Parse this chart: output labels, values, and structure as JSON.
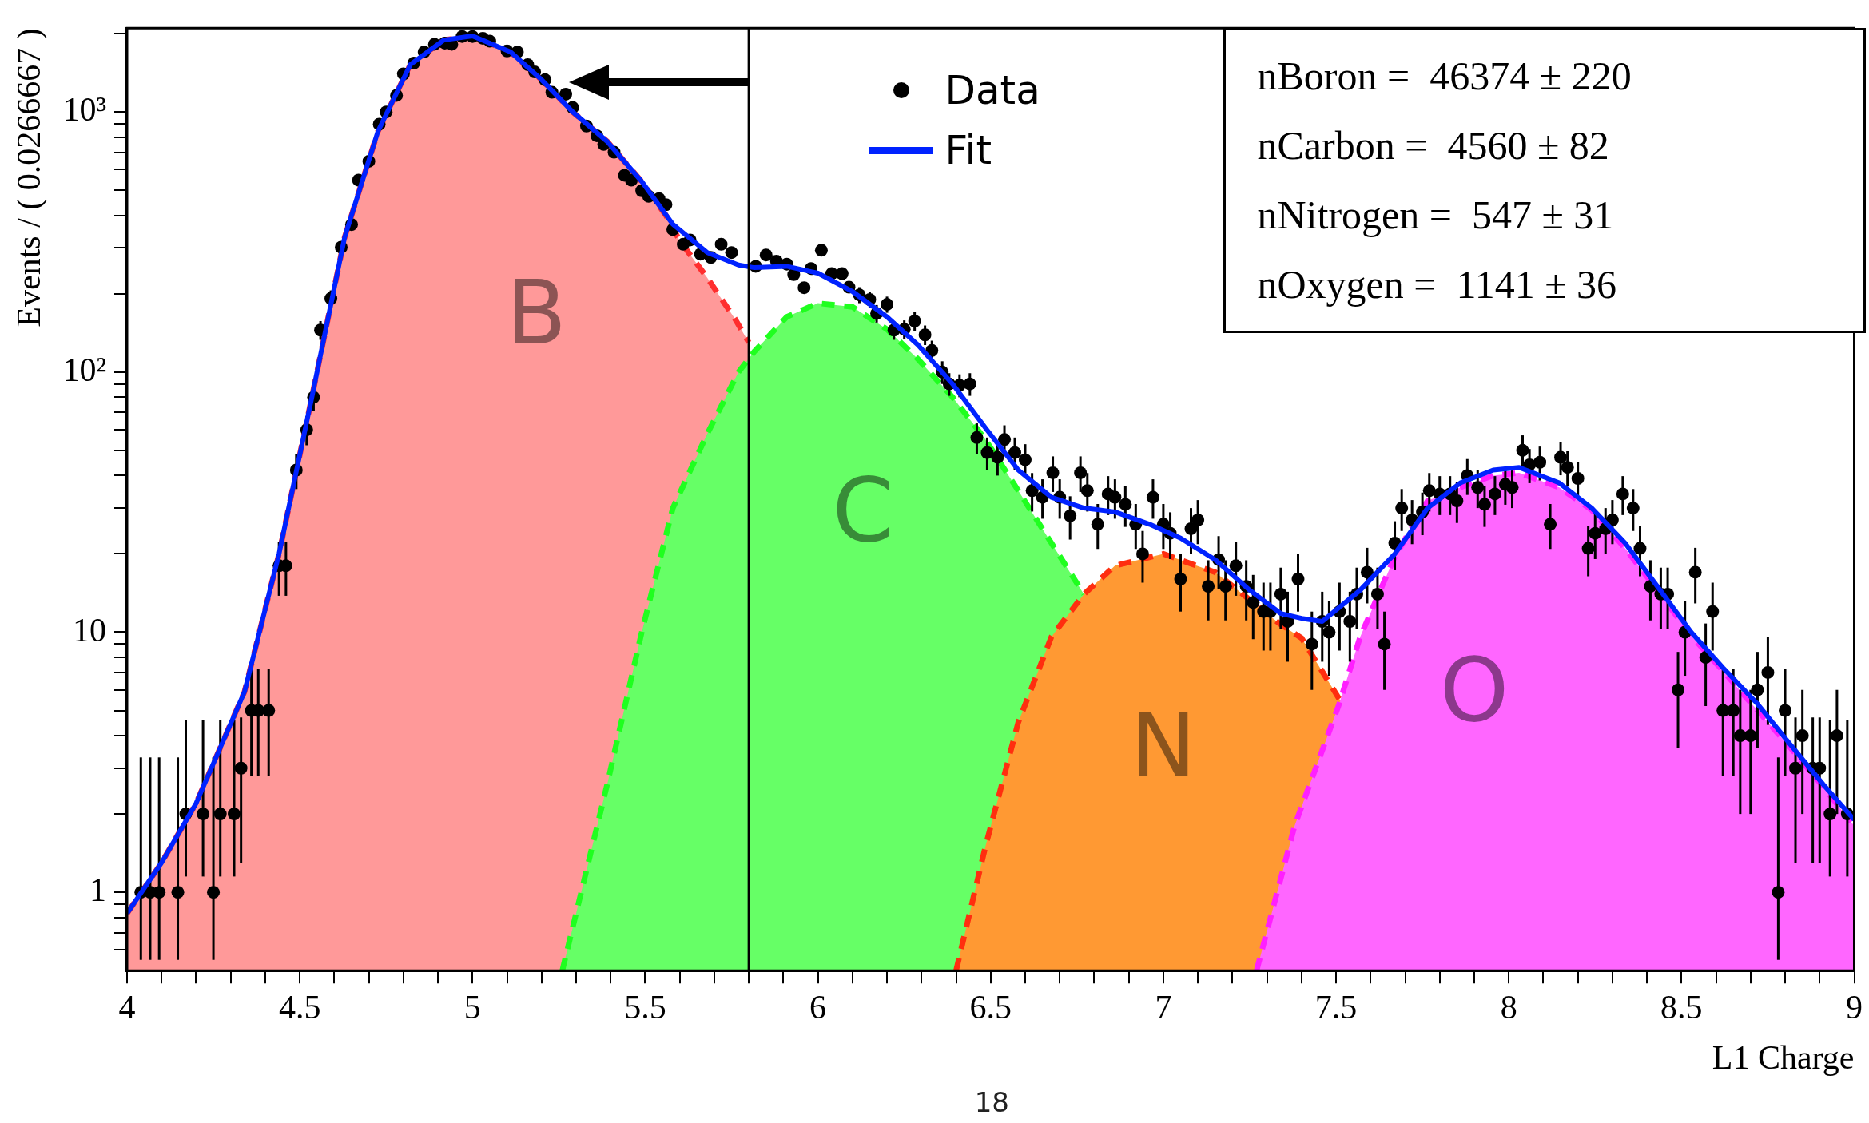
{
  "chart_data": {
    "type": "scatter",
    "xlabel": "L1 Charge",
    "ylabel": "Events / ( 0.0266667 )",
    "log": true,
    "legend": "top",
    "xlim": [
      4,
      9
    ],
    "ylim": [
      0.5,
      2100
    ],
    "xticks": [
      4,
      {
        "value": 4.1,
        "label": null
      },
      {
        "value": 4.2,
        "label": null
      },
      {
        "value": 4.3,
        "label": null
      },
      {
        "value": 4.4,
        "label": null
      },
      4.5,
      {
        "value": 4.6,
        "label": null
      },
      {
        "value": 4.7,
        "label": null
      },
      {
        "value": 4.8,
        "label": null
      },
      {
        "value": 4.9,
        "label": null
      },
      5,
      {
        "value": 5.1,
        "label": null
      },
      {
        "value": 5.2,
        "label": null
      },
      {
        "value": 5.3,
        "label": null
      },
      {
        "value": 5.4,
        "label": null
      },
      5.5,
      {
        "value": 5.6,
        "label": null
      },
      {
        "value": 5.7,
        "label": null
      },
      {
        "value": 5.8,
        "label": null
      },
      {
        "value": 5.9,
        "label": null
      },
      6,
      {
        "value": 6.1,
        "label": null
      },
      {
        "value": 6.2,
        "label": null
      },
      {
        "value": 6.3,
        "label": null
      },
      {
        "value": 6.4,
        "label": null
      },
      6.5,
      {
        "value": 6.6,
        "label": null
      },
      {
        "value": 6.7,
        "label": null
      },
      {
        "value": 6.8,
        "label": null
      },
      {
        "value": 6.9,
        "label": null
      },
      7,
      {
        "value": 7.1,
        "label": null
      },
      {
        "value": 7.2,
        "label": null
      },
      {
        "value": 7.3,
        "label": null
      },
      {
        "value": 7.4,
        "label": null
      },
      7.5,
      {
        "value": 7.6,
        "label": null
      },
      {
        "value": 7.7,
        "label": null
      },
      {
        "value": 7.8,
        "label": null
      },
      {
        "value": 7.9,
        "label": null
      },
      8,
      {
        "value": 8.1,
        "label": null
      },
      {
        "value": 8.2,
        "label": null
      },
      {
        "value": 8.3,
        "label": null
      },
      {
        "value": 8.4,
        "label": null
      },
      8.5,
      {
        "value": 8.6,
        "label": null
      },
      {
        "value": 8.7,
        "label": null
      },
      {
        "value": 8.8,
        "label": null
      },
      {
        "value": 8.9,
        "label": null
      },
      9
    ],
    "yticks": [
      {
        "value": 0.6,
        "label": null
      },
      {
        "value": 0.7,
        "label": null
      },
      {
        "value": 0.8,
        "label": null
      },
      {
        "value": 0.9,
        "label": null
      },
      1,
      {
        "value": 2,
        "label": null
      },
      {
        "value": 3,
        "label": null
      },
      {
        "value": 4,
        "label": null
      },
      {
        "value": 5,
        "label": null
      },
      {
        "value": 6,
        "label": null
      },
      {
        "value": 7,
        "label": null
      },
      {
        "value": 8,
        "label": null
      },
      {
        "value": 9,
        "label": null
      },
      10,
      {
        "value": 20,
        "label": null
      },
      {
        "value": 30,
        "label": null
      },
      {
        "value": 40,
        "label": null
      },
      {
        "value": 50,
        "label": null
      },
      {
        "value": 60,
        "label": null
      },
      {
        "value": 70,
        "label": null
      },
      {
        "value": 80,
        "label": null
      },
      {
        "value": 90,
        "label": null
      },
      {
        "value": 100,
        "label": "10²"
      },
      {
        "value": 200,
        "label": null
      },
      {
        "value": 300,
        "label": null
      },
      {
        "value": 400,
        "label": null
      },
      {
        "value": 500,
        "label": null
      },
      {
        "value": 600,
        "label": null
      },
      {
        "value": 700,
        "label": null
      },
      {
        "value": 800,
        "label": null
      },
      {
        "value": 900,
        "label": null
      },
      {
        "value": 1000,
        "label": "10³"
      },
      {
        "value": 2000,
        "label": null
      }
    ],
    "ref_lines": [
      {
        "axis": "x",
        "value": 5.8,
        "color": "#000000"
      }
    ],
    "annotations": [
      "B",
      "C",
      "N",
      "O",
      "nBoron =  46374 ± 220",
      "nCarbon =  4560 ± 82",
      "nNitrogen =  547 ± 31",
      "nOxygen =  1141 ± 36",
      "18"
    ],
    "series": [
      {
        "name": "Data",
        "color": "#000000",
        "marker": "circle",
        "x": [
          4.04,
          4.067,
          4.093,
          4.147,
          4.17,
          4.22,
          4.25,
          4.27,
          4.31,
          4.33,
          4.36,
          4.38,
          4.41,
          4.44,
          4.46,
          4.49,
          4.52,
          4.54,
          4.56,
          4.59,
          4.62,
          4.65,
          4.67,
          4.7,
          4.73,
          4.75,
          4.78,
          4.8,
          4.83,
          4.86,
          4.89,
          4.92,
          4.94,
          4.97,
          5.0,
          5.03,
          5.05,
          5.1,
          5.13,
          5.16,
          5.18,
          5.21,
          5.23,
          5.27,
          5.29,
          5.33,
          5.36,
          5.38,
          5.41,
          5.44,
          5.46,
          5.49,
          5.51,
          5.54,
          5.56,
          5.58,
          5.61,
          5.63,
          5.66,
          5.69,
          5.72,
          5.75,
          5.82,
          5.85,
          5.88,
          5.91,
          5.93,
          5.96,
          5.98,
          6.01,
          6.04,
          6.07,
          6.09,
          6.12,
          6.15,
          6.17,
          6.2,
          6.22,
          6.25,
          6.28,
          6.31,
          6.33,
          6.36,
          6.38,
          6.41,
          6.44,
          6.46,
          6.49,
          6.52,
          6.54,
          6.57,
          6.6,
          6.62,
          6.65,
          6.68,
          6.7,
          6.73,
          6.76,
          6.78,
          6.81,
          6.84,
          6.86,
          6.89,
          6.92,
          6.94,
          6.97,
          7.0,
          7.02,
          7.05,
          7.08,
          7.1,
          7.13,
          7.16,
          7.18,
          7.21,
          7.24,
          7.26,
          7.29,
          7.31,
          7.34,
          7.36,
          7.39,
          7.43,
          7.46,
          7.48,
          7.51,
          7.54,
          7.56,
          7.59,
          7.62,
          7.64,
          7.67,
          7.69,
          7.72,
          7.75,
          7.77,
          7.8,
          7.83,
          7.85,
          7.88,
          7.91,
          7.93,
          7.96,
          7.99,
          8.01,
          8.04,
          8.06,
          8.09,
          8.12,
          8.15,
          8.17,
          8.2,
          8.23,
          8.25,
          8.28,
          8.3,
          8.33,
          8.36,
          8.38,
          8.41,
          8.44,
          8.46,
          8.49,
          8.51,
          8.54,
          8.57,
          8.59,
          8.62,
          8.65,
          8.67,
          8.7,
          8.72,
          8.75,
          8.78,
          8.8,
          8.83,
          8.85,
          8.88,
          8.9,
          8.93,
          8.95,
          8.98
        ],
        "values": [
          1,
          1,
          1,
          1,
          2,
          2,
          1,
          2,
          2,
          3,
          5,
          5,
          5,
          18,
          18,
          42,
          60,
          80,
          145,
          192,
          302,
          369,
          547,
          646,
          897,
          1000,
          1158,
          1400,
          1540,
          1700,
          1820,
          1840,
          1820,
          1950,
          1950,
          1920,
          1870,
          1715,
          1700,
          1520,
          1425,
          1330,
          1190,
          1170,
          1040,
          883,
          810,
          750,
          700,
          571,
          547,
          498,
          474,
          464,
          440,
          353,
          310,
          322,
          284,
          276,
          310,
          288,
          255,
          282,
          267,
          260,
          237,
          211,
          250,
          294,
          239,
          239,
          212,
          198,
          190,
          168,
          182,
          145,
          146,
          157,
          139,
          121,
          100,
          90,
          89,
          90,
          56,
          49,
          47,
          55,
          49,
          46,
          35,
          33,
          41,
          33,
          28,
          41,
          35,
          26,
          34,
          33,
          31,
          26,
          20,
          33,
          26,
          24,
          16,
          25,
          27,
          15,
          19,
          15,
          18,
          15,
          13,
          12,
          12,
          14,
          11,
          16,
          9,
          11,
          10,
          12,
          11,
          14,
          17,
          14,
          9,
          22,
          30,
          27,
          29,
          35,
          34,
          34,
          32,
          40,
          36,
          31,
          34,
          37,
          36,
          50,
          44,
          45,
          26,
          47,
          43,
          39,
          21,
          24,
          25,
          27,
          34,
          30,
          21,
          15,
          14,
          14,
          6,
          10,
          17,
          8,
          12,
          5,
          5,
          4,
          4,
          6,
          7,
          1,
          5,
          3,
          4,
          3,
          3,
          2,
          4,
          2
        ],
        "errors": [
          [
            0.55,
            3.3
          ],
          [
            0.55,
            3.3
          ],
          [
            0.55,
            3.3
          ],
          [
            0.55,
            3.3
          ],
          [
            1.15,
            4.6
          ],
          [
            1.15,
            4.6
          ],
          [
            0.55,
            3.3
          ],
          [
            1.15,
            4.6
          ],
          [
            1.15,
            4.6
          ],
          1.7,
          2.2,
          2.2,
          2.2,
          4.2,
          4.2,
          6.5,
          7.7,
          9,
          12,
          14,
          null,
          null,
          null,
          null,
          null,
          null,
          null,
          null,
          null,
          null,
          null,
          null,
          null,
          null,
          null,
          null,
          null,
          null,
          null,
          null,
          null,
          null,
          null,
          null,
          null,
          null,
          null,
          null,
          null,
          null,
          null,
          null,
          null,
          null,
          null,
          null,
          null,
          null,
          null,
          null,
          null,
          null,
          null,
          null,
          null,
          null,
          null,
          null,
          null,
          null,
          null,
          null,
          null,
          14,
          14,
          13,
          13,
          12,
          12,
          13,
          12,
          11,
          10,
          9,
          9,
          9,
          7.5,
          7,
          7,
          7.4,
          7,
          6.8,
          5.9,
          5.7,
          6.4,
          5.7,
          5.3,
          6.4,
          5.9,
          5.1,
          5.8,
          5.7,
          5.6,
          5.1,
          4.5,
          5.7,
          5.1,
          4.9,
          4,
          5,
          5.2,
          3.9,
          4.4,
          3.9,
          4.2,
          3.9,
          3.6,
          3.5,
          3.5,
          3.7,
          3.3,
          4,
          3,
          3.3,
          3.2,
          3.5,
          3.3,
          3.7,
          4.1,
          3.7,
          3,
          4.7,
          5.5,
          5.2,
          5.4,
          5.9,
          5.8,
          5.8,
          5.7,
          6.3,
          6,
          5.6,
          5.8,
          6.1,
          6,
          7.1,
          6.6,
          6.7,
          5.1,
          6.9,
          6.6,
          6.2,
          4.6,
          4.9,
          5,
          5.2,
          5.8,
          5.5,
          4.6,
          3.9,
          3.7,
          3.7,
          2.4,
          3.2,
          4.1,
          2.8,
          3.5,
          2.2,
          2.2,
          2,
          2,
          2.4,
          2.6,
          [
            0.55,
            3.3
          ],
          2.2,
          1.7,
          2,
          1.7,
          1.7,
          [
            1.15,
            4.6
          ],
          2,
          [
            1.15,
            4.6
          ]
        ]
      },
      {
        "name": "Fit",
        "type": "line",
        "color": "#0022ff",
        "x": [
          4.0,
          4.1,
          4.2,
          4.34,
          4.44,
          4.535,
          4.63,
          4.726,
          4.82,
          4.917,
          5.0,
          5.11,
          5.2,
          5.29,
          5.39,
          5.49,
          5.58,
          5.68,
          5.77,
          5.816,
          5.91,
          6.0,
          6.1,
          6.2,
          6.29,
          6.39,
          6.485,
          6.58,
          6.676,
          6.77,
          6.86,
          6.96,
          7.05,
          7.15,
          7.25,
          7.34,
          7.4,
          7.46,
          7.57,
          7.67,
          7.765,
          7.86,
          7.955,
          8.03,
          8.146,
          8.24,
          8.337,
          8.43,
          8.528,
          8.62,
          8.72,
          8.815,
          8.91,
          9.0
        ],
        "values": [
          0.83,
          1.3,
          2.2,
          5.9,
          20,
          80,
          330,
          840,
          1520,
          1890,
          1960,
          1700,
          1330,
          1000,
          770,
          540,
          370,
          288,
          258,
          252,
          255,
          240,
          204,
          163,
          127,
          90,
          61,
          42,
          33,
          30,
          29,
          26,
          23,
          19,
          14.5,
          11.8,
          11.3,
          11,
          14.5,
          20,
          30,
          37.5,
          42,
          43,
          37.5,
          30,
          22,
          15,
          10,
          7.3,
          5.3,
          3.7,
          2.6,
          1.9
        ]
      },
      {
        "type": "area",
        "color": "#ff9999",
        "line_style": "dashed",
        "x": [
          4.0,
          4.1,
          4.2,
          4.34,
          4.44,
          4.535,
          4.63,
          4.726,
          4.82,
          4.917,
          5.0,
          5.11,
          5.2,
          5.29,
          5.39,
          5.49,
          5.56,
          5.6,
          5.68,
          5.76,
          5.8
        ],
        "values": [
          0.83,
          1.3,
          2.2,
          5.9,
          20,
          80,
          330,
          840,
          1520,
          1890,
          1960,
          1700,
          1330,
          1000,
          770,
          540,
          400,
          320,
          230,
          160,
          130
        ]
      },
      {
        "type": "area",
        "color": "#66ff66",
        "line_style": "dashed",
        "x": [
          5.26,
          5.39,
          5.49,
          5.58,
          5.68,
          5.77,
          5.816,
          5.91,
          6.0,
          6.1,
          6.2,
          6.29,
          6.39,
          6.485,
          6.58,
          6.676,
          6.77
        ],
        "values": [
          0.5,
          2.6,
          10,
          30,
          58,
          100,
          120,
          163,
          184,
          178,
          146,
          112,
          80,
          55,
          35,
          22,
          14
        ]
      },
      {
        "type": "area",
        "color": "#ff9933",
        "line_style": "dashed",
        "x": [
          6.4,
          6.485,
          6.58,
          6.676,
          6.77,
          6.86,
          7.0,
          7.15,
          7.34,
          7.4,
          7.507,
          7.52
        ],
        "values": [
          0.5,
          1.5,
          4.5,
          9.6,
          14,
          18,
          20,
          17,
          10.7,
          9.5,
          5.6,
          5.3
        ]
      },
      {
        "type": "area",
        "color": "#ff66ff",
        "line_style": "dashed",
        "x": [
          7.27,
          7.38,
          7.507,
          7.57,
          7.67,
          7.765,
          7.86,
          7.955,
          8.03,
          8.146,
          8.24,
          8.337,
          8.43,
          8.528,
          8.62,
          8.72,
          8.815,
          8.91,
          9.0
        ],
        "values": [
          0.5,
          1.8,
          5.2,
          9.6,
          19.5,
          32,
          36,
          40,
          41,
          36,
          29.5,
          21,
          14.5,
          9.7,
          7.1,
          5,
          3.6,
          2.55,
          1.8
        ]
      }
    ]
  }
}
